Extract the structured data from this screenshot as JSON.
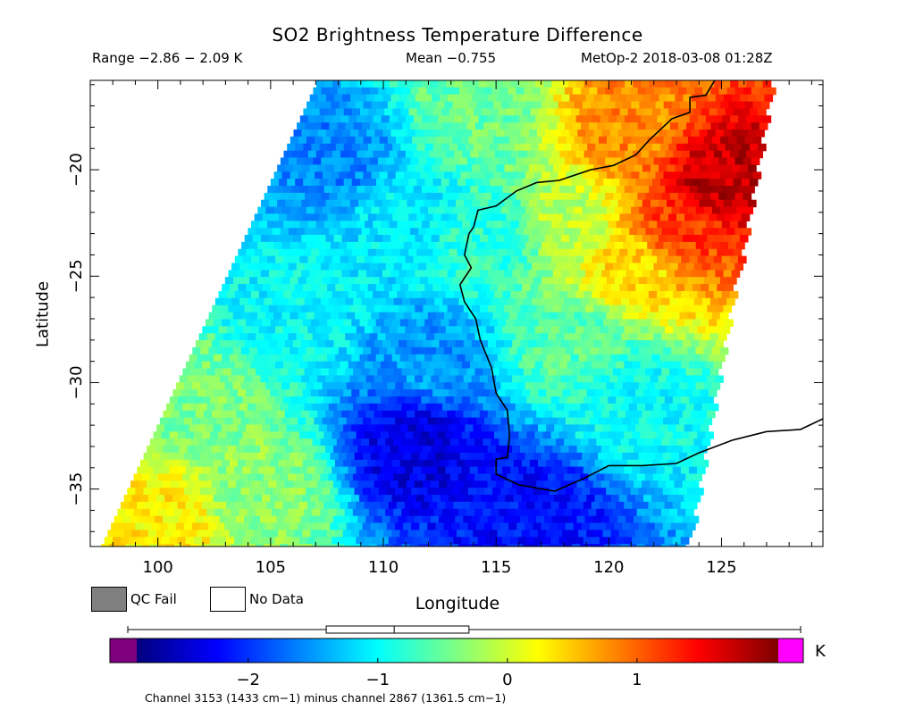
{
  "header": {
    "title": "SO2 Brightness Temperature Difference",
    "range": "Range −2.86 − 2.09 K",
    "mean": "Mean −0.755",
    "satellite_time": "MetOp-2 2018-03-08 01:28Z"
  },
  "legend": {
    "qc_fail": "QC Fail",
    "no_data": "No Data",
    "colors": {
      "qc_fail": "#808080",
      "no_data": "#ffffff",
      "below_range": "#7f007f",
      "above_range": "#ff00ff"
    }
  },
  "colorbar": {
    "unit": "K",
    "range": [
      -2.86,
      2.09
    ],
    "tick_values": [
      -2,
      -1,
      0,
      1
    ],
    "tick_labels": [
      "−2",
      "−1",
      "0",
      "1"
    ],
    "colormap": [
      "#00007f",
      "#0000ff",
      "#0080ff",
      "#00ffff",
      "#80ff80",
      "#ffff00",
      "#ff8000",
      "#ff0000",
      "#7f0000"
    ],
    "boxplot": {
      "min": -2.86,
      "q1": -1.4,
      "median": -0.9,
      "q3": -0.35,
      "max": 2.09
    }
  },
  "footnote": "Channel 3153 (1433 cm−1) minus channel 2867 (1361.5 cm−1)",
  "chart_data": {
    "type": "heatmap",
    "title": "SO2 Brightness Temperature Difference",
    "xlabel": "Longitude",
    "ylabel": "Latitude",
    "xlim": [
      97,
      129.5
    ],
    "ylim": [
      -37.7,
      -15.8
    ],
    "x_ticks": [
      100,
      105,
      110,
      115,
      120,
      125
    ],
    "y_ticks": [
      -20,
      -25,
      -30,
      -35
    ],
    "x_tick_labels": [
      "100",
      "105",
      "110",
      "115",
      "120",
      "125"
    ],
    "y_tick_labels": [
      "−20",
      "−25",
      "−30",
      "−35"
    ],
    "value_range": [
      -2.86,
      2.09
    ],
    "mean": -0.755,
    "swath_edges": {
      "west": [
        [
          -15.8,
          107.1
        ],
        [
          -37.7,
          97.5
        ]
      ],
      "east": [
        [
          -15.8,
          127.2
        ],
        [
          -37.7,
          123.4
        ]
      ]
    },
    "fields": [
      {
        "lon": 125.0,
        "lat": -20.5,
        "value": 1.8
      },
      {
        "lon": 123.0,
        "lat": -23.0,
        "value": 1.2
      },
      {
        "lon": 121.0,
        "lat": -18.0,
        "value": 0.8
      },
      {
        "lon": 121.5,
        "lat": -24.5,
        "value": 0.4
      },
      {
        "lon": 118.0,
        "lat": -22.5,
        "value": -0.1
      },
      {
        "lon": 114.0,
        "lat": -17.5,
        "value": -0.5
      },
      {
        "lon": 115.0,
        "lat": -23.0,
        "value": -0.8
      },
      {
        "lon": 118.5,
        "lat": -28.5,
        "value": -0.6
      },
      {
        "lon": 121.0,
        "lat": -31.0,
        "value": -1.0
      },
      {
        "lon": 108.0,
        "lat": -19.5,
        "value": -1.6
      },
      {
        "lon": 111.0,
        "lat": -22.0,
        "value": -1.1
      },
      {
        "lon": 112.0,
        "lat": -29.0,
        "value": -1.5
      },
      {
        "lon": 111.5,
        "lat": -33.0,
        "value": -2.4
      },
      {
        "lon": 116.5,
        "lat": -35.8,
        "value": -2.2
      },
      {
        "lon": 102.0,
        "lat": -31.0,
        "value": -0.4
      },
      {
        "lon": 100.0,
        "lat": -36.5,
        "value": 0.3
      },
      {
        "lon": 106.0,
        "lat": -27.0,
        "value": -1.0
      },
      {
        "lon": 104.5,
        "lat": -35.0,
        "value": -0.3
      }
    ],
    "qc_fail_pixels": [],
    "coastline": [
      [
        124.7,
        -15.8
      ],
      [
        124.3,
        -16.5
      ],
      [
        123.6,
        -16.6
      ],
      [
        123.6,
        -17.3
      ],
      [
        122.8,
        -17.6
      ],
      [
        122.4,
        -18.0
      ],
      [
        121.8,
        -18.6
      ],
      [
        121.2,
        -19.3
      ],
      [
        120.2,
        -19.8
      ],
      [
        119.2,
        -20.0
      ],
      [
        117.8,
        -20.5
      ],
      [
        116.8,
        -20.6
      ],
      [
        115.9,
        -21.0
      ],
      [
        115.0,
        -21.7
      ],
      [
        114.2,
        -21.9
      ],
      [
        114.0,
        -22.7
      ],
      [
        113.8,
        -23.0
      ],
      [
        113.6,
        -24.0
      ],
      [
        113.9,
        -24.6
      ],
      [
        113.4,
        -25.4
      ],
      [
        113.6,
        -26.2
      ],
      [
        114.1,
        -27.0
      ],
      [
        114.3,
        -28.0
      ],
      [
        114.8,
        -29.3
      ],
      [
        115.0,
        -30.5
      ],
      [
        115.5,
        -31.3
      ],
      [
        115.6,
        -32.5
      ],
      [
        115.5,
        -33.5
      ],
      [
        115.0,
        -33.6
      ],
      [
        115.0,
        -34.3
      ],
      [
        116.0,
        -34.8
      ],
      [
        117.6,
        -35.1
      ],
      [
        118.9,
        -34.5
      ],
      [
        120.0,
        -33.9
      ],
      [
        121.5,
        -33.9
      ],
      [
        123.0,
        -33.8
      ],
      [
        124.0,
        -33.3
      ],
      [
        125.5,
        -32.7
      ],
      [
        127.0,
        -32.3
      ],
      [
        128.5,
        -32.2
      ],
      [
        129.5,
        -31.7
      ]
    ]
  }
}
